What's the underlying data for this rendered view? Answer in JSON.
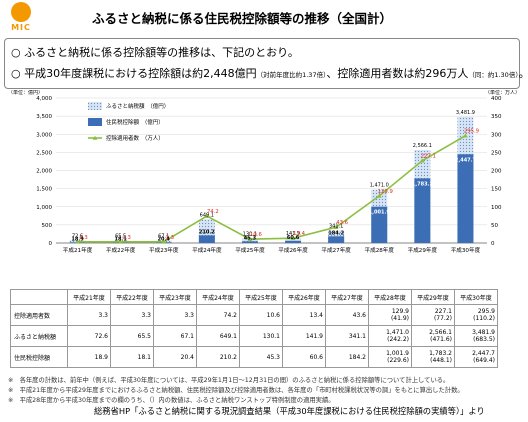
{
  "logo": {
    "text": "MIC"
  },
  "title": "ふるさと納税に係る住民税控除額等の推移（全国計）",
  "bullets": [
    {
      "mark": "○",
      "text": "ふるさと納税に係る控除額等の推移は、下記のとおり。",
      "note": ""
    },
    {
      "mark": "○",
      "text": "平成30年度課税における控除額は約2,448億円",
      "note": "（対前年度比約1.37倍）",
      "text2": "、控除適用者数は約296万人",
      "note2": "（同：約1.30倍）",
      "text3": "。"
    }
  ],
  "chart_data": {
    "type": "bar",
    "categories": [
      "平成21年度",
      "平成22年度",
      "平成23年度",
      "平成24年度",
      "平成25年度",
      "平成26年度",
      "平成27年度",
      "平成28年度",
      "平成29年度",
      "平成30年度"
    ],
    "y_left_unit": "（単位：億円）",
    "y_right_unit": "（単位：万人）",
    "y_left_ticks": [
      "0",
      "500",
      "1,000",
      "1,500",
      "2,000",
      "2,500",
      "3,000",
      "3,500",
      "4,000"
    ],
    "y_right_ticks": [
      "0",
      "50",
      "100",
      "150",
      "200",
      "250",
      "300",
      "350",
      "400"
    ],
    "ylim_left": [
      0,
      4000
    ],
    "ylim_right": [
      0,
      400
    ],
    "legend": [
      "ふるさと納税額　（億円）",
      "住民税控除額　（億円）",
      "控除適用者数　（万人）"
    ],
    "series": [
      {
        "name": "ふるさと納税額　（億円）",
        "values": [
          72.6,
          65.5,
          67.1,
          649.1,
          130.1,
          141.9,
          341.1,
          1471.0,
          2566.1,
          3481.9
        ],
        "labels": [
          "72.6",
          "65.5",
          "67.1",
          "649.1",
          "130.1",
          "141.9",
          "341.1",
          "1,471.0",
          "2,566.1",
          "3,481.9"
        ]
      },
      {
        "name": "住民税控除額　（億円）",
        "values": [
          18.9,
          18.1,
          20.4,
          210.2,
          45.3,
          60.6,
          184.2,
          1001.9,
          1783.2,
          2447.7
        ],
        "labels": [
          "18.9",
          "18.1",
          "20.4",
          "210.2",
          "45.3",
          "60.6",
          "184.2",
          "1,001.9",
          "1,783.2",
          "2,447.7"
        ]
      },
      {
        "name": "控除適用者数　（万人）",
        "values": [
          3.3,
          3.3,
          3.3,
          74.2,
          10.6,
          13.4,
          43.6,
          129.9,
          227.1,
          295.9
        ],
        "labels": [
          "3.3",
          "3.3",
          "3.3",
          "74.2",
          "10.6",
          "13.4",
          "43.6",
          "129.9",
          "227.1",
          "295.9"
        ]
      }
    ],
    "colors": {
      "furusato": "#d6e4f4",
      "furusato_dot": "#6f8fc4",
      "koujo": "#3b6eb4",
      "persons": "#8cbf3f",
      "persons_label": "#e0261b"
    }
  },
  "table": {
    "headers": [
      "平成21年度",
      "平成22年度",
      "平成23年度",
      "平成24年度",
      "平成25年度",
      "平成26年度",
      "平成27年度",
      "平成28年度",
      "平成29年度",
      "平成30年度"
    ],
    "rows": [
      {
        "label": "控除適用者数",
        "cells": [
          [
            "3.3",
            ""
          ],
          [
            "3.3",
            ""
          ],
          [
            "3.3",
            ""
          ],
          [
            "74.2",
            ""
          ],
          [
            "10.6",
            ""
          ],
          [
            "13.4",
            ""
          ],
          [
            "43.6",
            ""
          ],
          [
            "129.9",
            "(41.9)"
          ],
          [
            "227.1",
            "(77.2)"
          ],
          [
            "295.9",
            "(110.2)"
          ]
        ]
      },
      {
        "label": "ふるさと納税額",
        "cells": [
          [
            "72.6",
            ""
          ],
          [
            "65.5",
            ""
          ],
          [
            "67.1",
            ""
          ],
          [
            "649.1",
            ""
          ],
          [
            "130.1",
            ""
          ],
          [
            "141.9",
            ""
          ],
          [
            "341.1",
            ""
          ],
          [
            "1,471.0",
            "(242.2)"
          ],
          [
            "2,566.1",
            "(471.6)"
          ],
          [
            "3,481.9",
            "(683.5)"
          ]
        ]
      },
      {
        "label": "住民税控除額",
        "cells": [
          [
            "18.9",
            ""
          ],
          [
            "18.1",
            ""
          ],
          [
            "20.4",
            ""
          ],
          [
            "210.2",
            ""
          ],
          [
            "45.3",
            ""
          ],
          [
            "60.6",
            ""
          ],
          [
            "184.2",
            ""
          ],
          [
            "1,001.9",
            "(229.6)"
          ],
          [
            "1,783.2",
            "(448.1)"
          ],
          [
            "2,447.7",
            "(649.4)"
          ]
        ]
      }
    ]
  },
  "notes": [
    "※　各年度の計数は、前年中（例えば、平成30年度については、平成29年1月1日〜12月31日の間）のふるさと納税に係る控除額等について計上している。",
    "※　平成21年度から平成29年度までにおけるふるさと納税額、住民税控除額及び控除適用者数は、各年度の「市町村税課税状況等の調」をもとに算出した計数。",
    "※　平成28年度から平成30年度までの欄のうち、（）内の数値は、ふるさと納税ワンストップ特例制度の適用実績。"
  ],
  "source": "総務省HP「ふるさと納税に関する現況調査結果（平成30年度課税における住民税控除額の実績等）」より"
}
